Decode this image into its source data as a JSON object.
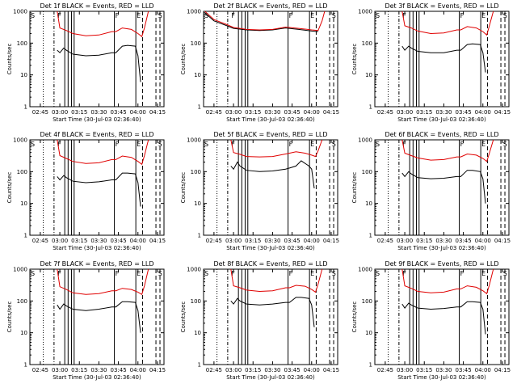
{
  "colors": {
    "events": "#000000",
    "lld": "#e00000",
    "background": "#ffffff"
  },
  "chart_data": [
    {
      "type": "line",
      "panel": 1,
      "title": "Det 1f BLACK = Events, RED = LLD",
      "ylabel": "Counts/sec",
      "xlabel": "Start Time (30-Jul-03 02:36:40)",
      "yscale": "log",
      "ylim": [
        1,
        1000
      ],
      "xlim": [
        "02:37",
        "04:20"
      ],
      "xtick_labels": [
        "02:45",
        "03:00",
        "03:15",
        "03:30",
        "03:45",
        "04:00",
        "04:15"
      ],
      "ytick_labels": [
        "1",
        "10",
        "100",
        "1000"
      ],
      "event_markers": [
        "S",
        "F",
        "F",
        "E",
        "S"
      ],
      "series": [
        {
          "name": "Events",
          "color": "#000000",
          "x": [
            "02:58",
            "03:00",
            "03:03",
            "03:05",
            "03:10",
            "03:20",
            "03:30",
            "03:40",
            "03:43",
            "03:48",
            "03:52",
            "03:58",
            "04:00",
            "04:02"
          ],
          "values": [
            60,
            50,
            70,
            60,
            45,
            40,
            42,
            50,
            50,
            80,
            85,
            80,
            40,
            6
          ]
        },
        {
          "name": "LLD",
          "color": "#e00000",
          "x": [
            "02:58",
            "03:00",
            "03:05",
            "03:10",
            "03:20",
            "03:30",
            "03:40",
            "03:43",
            "03:48",
            "03:55",
            "04:00",
            "04:03",
            "04:05",
            "04:08"
          ],
          "values": [
            1000,
            300,
            250,
            200,
            170,
            180,
            230,
            230,
            300,
            270,
            200,
            160,
            300,
            1000
          ]
        }
      ]
    },
    {
      "type": "line",
      "panel": 2,
      "title": "Det 2f BLACK = Events, RED = LLD",
      "ylabel": "Counts/sec",
      "xlabel": "Start Time (30-Jul-03 02:36:40)",
      "yscale": "log",
      "ylim": [
        1,
        1000
      ],
      "xlim": [
        "02:37",
        "04:20"
      ],
      "xtick_labels": [
        "02:45",
        "03:00",
        "03:15",
        "03:30",
        "03:45",
        "04:00",
        "04:15"
      ],
      "ytick_labels": [
        "1",
        "10",
        "100",
        "1000"
      ],
      "event_markers": [
        "S",
        "F",
        "F",
        "E",
        "S"
      ],
      "series": [
        {
          "name": "Events",
          "color": "#000000",
          "x": [
            "02:38",
            "02:45",
            "02:55",
            "03:00",
            "03:10",
            "03:20",
            "03:30",
            "03:40",
            "03:50",
            "04:00",
            "04:05"
          ],
          "values": [
            900,
            500,
            350,
            290,
            260,
            250,
            260,
            300,
            270,
            240,
            230
          ]
        },
        {
          "name": "LLD",
          "color": "#e00000",
          "x": [
            "02:38",
            "02:45",
            "02:55",
            "03:00",
            "03:10",
            "03:20",
            "03:30",
            "03:40",
            "03:50",
            "04:00",
            "04:05",
            "04:08",
            "04:10"
          ],
          "values": [
            1000,
            550,
            380,
            310,
            270,
            260,
            270,
            320,
            290,
            260,
            250,
            500,
            1000
          ]
        }
      ]
    },
    {
      "type": "line",
      "panel": 3,
      "title": "Det 3f BLACK = Events, RED = LLD",
      "ylabel": "Counts/sec",
      "xlabel": "Start Time (30-Jul-03 02:36:40)",
      "yscale": "log",
      "ylim": [
        1,
        1000
      ],
      "xlim": [
        "02:37",
        "04:20"
      ],
      "xtick_labels": [
        "02:45",
        "03:00",
        "03:15",
        "03:30",
        "03:45",
        "04:00",
        "04:15"
      ],
      "ytick_labels": [
        "1",
        "10",
        "100",
        "1000"
      ],
      "event_markers": [
        "S",
        "F",
        "F",
        "E",
        "S"
      ],
      "series": [
        {
          "name": "Events",
          "color": "#000000",
          "x": [
            "02:58",
            "03:00",
            "03:03",
            "03:05",
            "03:10",
            "03:20",
            "03:30",
            "03:40",
            "03:43",
            "03:48",
            "03:52",
            "03:58",
            "04:00",
            "04:02"
          ],
          "values": [
            80,
            60,
            80,
            70,
            55,
            50,
            50,
            60,
            60,
            90,
            95,
            90,
            50,
            12
          ]
        },
        {
          "name": "LLD",
          "color": "#e00000",
          "x": [
            "02:58",
            "03:00",
            "03:05",
            "03:10",
            "03:20",
            "03:30",
            "03:40",
            "03:43",
            "03:48",
            "03:55",
            "04:00",
            "04:03",
            "04:05",
            "04:08"
          ],
          "values": [
            1000,
            350,
            300,
            240,
            200,
            210,
            260,
            260,
            330,
            300,
            230,
            180,
            350,
            1000
          ]
        }
      ]
    },
    {
      "type": "line",
      "panel": 4,
      "title": "Det 4f BLACK = Events, RED = LLD",
      "ylabel": "Counts/sec",
      "xlabel": "Start Time (30-Jul-03 02:36:40)",
      "yscale": "log",
      "ylim": [
        1,
        1000
      ],
      "xlim": [
        "02:37",
        "04:20"
      ],
      "xtick_labels": [
        "02:45",
        "03:00",
        "03:15",
        "03:30",
        "03:45",
        "04:00",
        "04:15"
      ],
      "ytick_labels": [
        "1",
        "10",
        "100",
        "1000"
      ],
      "event_markers": [
        "S",
        "F",
        "F",
        "E",
        "S"
      ],
      "series": [
        {
          "name": "Events",
          "color": "#000000",
          "x": [
            "02:58",
            "03:00",
            "03:03",
            "03:05",
            "03:10",
            "03:20",
            "03:30",
            "03:40",
            "03:43",
            "03:48",
            "03:52",
            "03:58",
            "04:00",
            "04:02"
          ],
          "values": [
            70,
            55,
            75,
            65,
            50,
            45,
            48,
            55,
            55,
            90,
            90,
            85,
            45,
            8
          ]
        },
        {
          "name": "LLD",
          "color": "#e00000",
          "x": [
            "02:58",
            "03:00",
            "03:05",
            "03:10",
            "03:20",
            "03:30",
            "03:40",
            "03:43",
            "03:48",
            "03:55",
            "04:00",
            "04:03",
            "04:05",
            "04:08"
          ],
          "values": [
            1000,
            320,
            260,
            210,
            180,
            190,
            240,
            240,
            310,
            280,
            210,
            170,
            320,
            1000
          ]
        }
      ]
    },
    {
      "type": "line",
      "panel": 5,
      "title": "Det 5f BLACK = Events, RED = LLD",
      "ylabel": "Counts/sec",
      "xlabel": "Start Time (30-Jul-03 02:36:40)",
      "yscale": "log",
      "ylim": [
        1,
        1000
      ],
      "xlim": [
        "02:37",
        "04:20"
      ],
      "xtick_labels": [
        "02:45",
        "03:00",
        "03:15",
        "03:30",
        "03:45",
        "04:00",
        "04:15"
      ],
      "ytick_labels": [
        "1",
        "10",
        "100",
        "1000"
      ],
      "event_markers": [
        "S",
        "F",
        "F",
        "E",
        "S"
      ],
      "series": [
        {
          "name": "Events",
          "color": "#000000",
          "x": [
            "02:58",
            "03:00",
            "03:03",
            "03:05",
            "03:10",
            "03:20",
            "03:30",
            "03:40",
            "03:43",
            "03:48",
            "03:52",
            "03:58",
            "04:00",
            "04:02"
          ],
          "values": [
            150,
            120,
            200,
            150,
            110,
            100,
            105,
            120,
            130,
            150,
            220,
            150,
            120,
            30
          ]
        },
        {
          "name": "LLD",
          "color": "#e00000",
          "x": [
            "02:58",
            "03:00",
            "03:05",
            "03:10",
            "03:20",
            "03:30",
            "03:40",
            "03:43",
            "03:48",
            "03:55",
            "04:00",
            "04:03",
            "04:05",
            "04:08"
          ],
          "values": [
            1000,
            400,
            350,
            300,
            290,
            300,
            360,
            380,
            420,
            380,
            330,
            300,
            450,
            1000
          ]
        }
      ]
    },
    {
      "type": "line",
      "panel": 6,
      "title": "Det 6f BLACK = Events, RED = LLD",
      "ylabel": "Counts/sec",
      "xlabel": "Start Time (30-Jul-03 02:36:40)",
      "yscale": "log",
      "ylim": [
        1,
        1000
      ],
      "xlim": [
        "02:37",
        "04:20"
      ],
      "xtick_labels": [
        "02:45",
        "03:00",
        "03:15",
        "03:30",
        "03:45",
        "04:00",
        "04:15"
      ],
      "ytick_labels": [
        "1",
        "10",
        "100",
        "1000"
      ],
      "event_markers": [
        "S",
        "F",
        "F",
        "E",
        "S"
      ],
      "series": [
        {
          "name": "Events",
          "color": "#000000",
          "x": [
            "02:58",
            "03:00",
            "03:03",
            "03:05",
            "03:10",
            "03:20",
            "03:30",
            "03:40",
            "03:43",
            "03:48",
            "03:52",
            "03:58",
            "04:00",
            "04:02"
          ],
          "values": [
            90,
            70,
            100,
            85,
            65,
            60,
            62,
            70,
            70,
            110,
            110,
            100,
            60,
            10
          ]
        },
        {
          "name": "LLD",
          "color": "#e00000",
          "x": [
            "02:58",
            "03:00",
            "03:05",
            "03:10",
            "03:20",
            "03:30",
            "03:40",
            "03:43",
            "03:48",
            "03:55",
            "04:00",
            "04:03",
            "04:05",
            "04:08"
          ],
          "values": [
            1000,
            380,
            320,
            270,
            230,
            240,
            290,
            290,
            360,
            330,
            260,
            210,
            380,
            1000
          ]
        }
      ]
    },
    {
      "type": "line",
      "panel": 7,
      "title": "Det 7f BLACK = Events, RED = LLD",
      "ylabel": "Counts/sec",
      "xlabel": "Start Time (30-Jul-03 02:36:40)",
      "yscale": "log",
      "ylim": [
        1,
        1000
      ],
      "xlim": [
        "02:37",
        "04:20"
      ],
      "xtick_labels": [
        "02:45",
        "03:00",
        "03:15",
        "03:30",
        "03:45",
        "04:00",
        "04:15"
      ],
      "ytick_labels": [
        "1",
        "10",
        "100",
        "1000"
      ],
      "event_markers": [
        "S",
        "F",
        "F",
        "E",
        "S"
      ],
      "series": [
        {
          "name": "Events",
          "color": "#000000",
          "x": [
            "02:58",
            "03:00",
            "03:03",
            "03:05",
            "03:10",
            "03:20",
            "03:30",
            "03:40",
            "03:43",
            "03:48",
            "03:52",
            "03:58",
            "04:00",
            "04:02"
          ],
          "values": [
            75,
            55,
            80,
            70,
            55,
            50,
            55,
            65,
            65,
            95,
            95,
            90,
            50,
            10
          ]
        },
        {
          "name": "LLD",
          "color": "#e00000",
          "x": [
            "02:58",
            "03:00",
            "03:05",
            "03:10",
            "03:20",
            "03:30",
            "03:40",
            "03:43",
            "03:48",
            "03:55",
            "04:00",
            "04:03",
            "04:05",
            "04:08"
          ],
          "values": [
            1000,
            280,
            230,
            180,
            160,
            170,
            210,
            210,
            250,
            230,
            190,
            160,
            300,
            1000
          ]
        }
      ]
    },
    {
      "type": "line",
      "panel": 8,
      "title": "Det 8f BLACK = Events, RED = LLD",
      "ylabel": "Counts/sec",
      "xlabel": "Start Time (30-Jul-03 02:36:40)",
      "yscale": "log",
      "ylim": [
        1,
        1000
      ],
      "xlim": [
        "02:37",
        "04:20"
      ],
      "xtick_labels": [
        "02:45",
        "03:00",
        "03:15",
        "03:30",
        "03:45",
        "04:00",
        "04:15"
      ],
      "ytick_labels": [
        "1",
        "10",
        "100",
        "1000"
      ],
      "event_markers": [
        "S",
        "F",
        "F",
        "E",
        "S"
      ],
      "series": [
        {
          "name": "Events",
          "color": "#000000",
          "x": [
            "02:58",
            "03:00",
            "03:03",
            "03:05",
            "03:10",
            "03:20",
            "03:30",
            "03:40",
            "03:43",
            "03:48",
            "03:52",
            "03:58",
            "04:00",
            "04:02"
          ],
          "values": [
            100,
            80,
            120,
            100,
            80,
            75,
            80,
            90,
            90,
            130,
            130,
            120,
            75,
            15
          ]
        },
        {
          "name": "LLD",
          "color": "#e00000",
          "x": [
            "02:58",
            "03:00",
            "03:05",
            "03:10",
            "03:20",
            "03:30",
            "03:40",
            "03:43",
            "03:48",
            "03:55",
            "04:00",
            "04:03",
            "04:05",
            "04:08"
          ],
          "values": [
            1000,
            300,
            260,
            220,
            200,
            210,
            260,
            260,
            310,
            290,
            230,
            190,
            340,
            1000
          ]
        }
      ]
    },
    {
      "type": "line",
      "panel": 9,
      "title": "Det 9f BLACK = Events, RED = LLD",
      "ylabel": "Counts/sec",
      "xlabel": "Start Time (30-Jul-03 02:36:40)",
      "yscale": "log",
      "ylim": [
        1,
        1000
      ],
      "xlim": [
        "02:37",
        "04:20"
      ],
      "xtick_labels": [
        "02:45",
        "03:00",
        "03:15",
        "03:30",
        "03:45",
        "04:00",
        "04:15"
      ],
      "ytick_labels": [
        "1",
        "10",
        "100",
        "1000"
      ],
      "event_markers": [
        "S",
        "F",
        "F",
        "E",
        "S"
      ],
      "series": [
        {
          "name": "Events",
          "color": "#000000",
          "x": [
            "02:58",
            "03:00",
            "03:03",
            "03:05",
            "03:10",
            "03:20",
            "03:30",
            "03:40",
            "03:43",
            "03:48",
            "03:52",
            "03:58",
            "04:00",
            "04:02"
          ],
          "values": [
            80,
            60,
            85,
            75,
            60,
            55,
            58,
            65,
            65,
            95,
            95,
            90,
            55,
            9
          ]
        },
        {
          "name": "LLD",
          "color": "#e00000",
          "x": [
            "02:58",
            "03:00",
            "03:05",
            "03:10",
            "03:20",
            "03:30",
            "03:40",
            "03:43",
            "03:48",
            "03:55",
            "04:00",
            "04:03",
            "04:05",
            "04:08"
          ],
          "values": [
            1000,
            300,
            250,
            200,
            180,
            190,
            240,
            240,
            300,
            270,
            210,
            170,
            320,
            1000
          ]
        }
      ]
    }
  ]
}
